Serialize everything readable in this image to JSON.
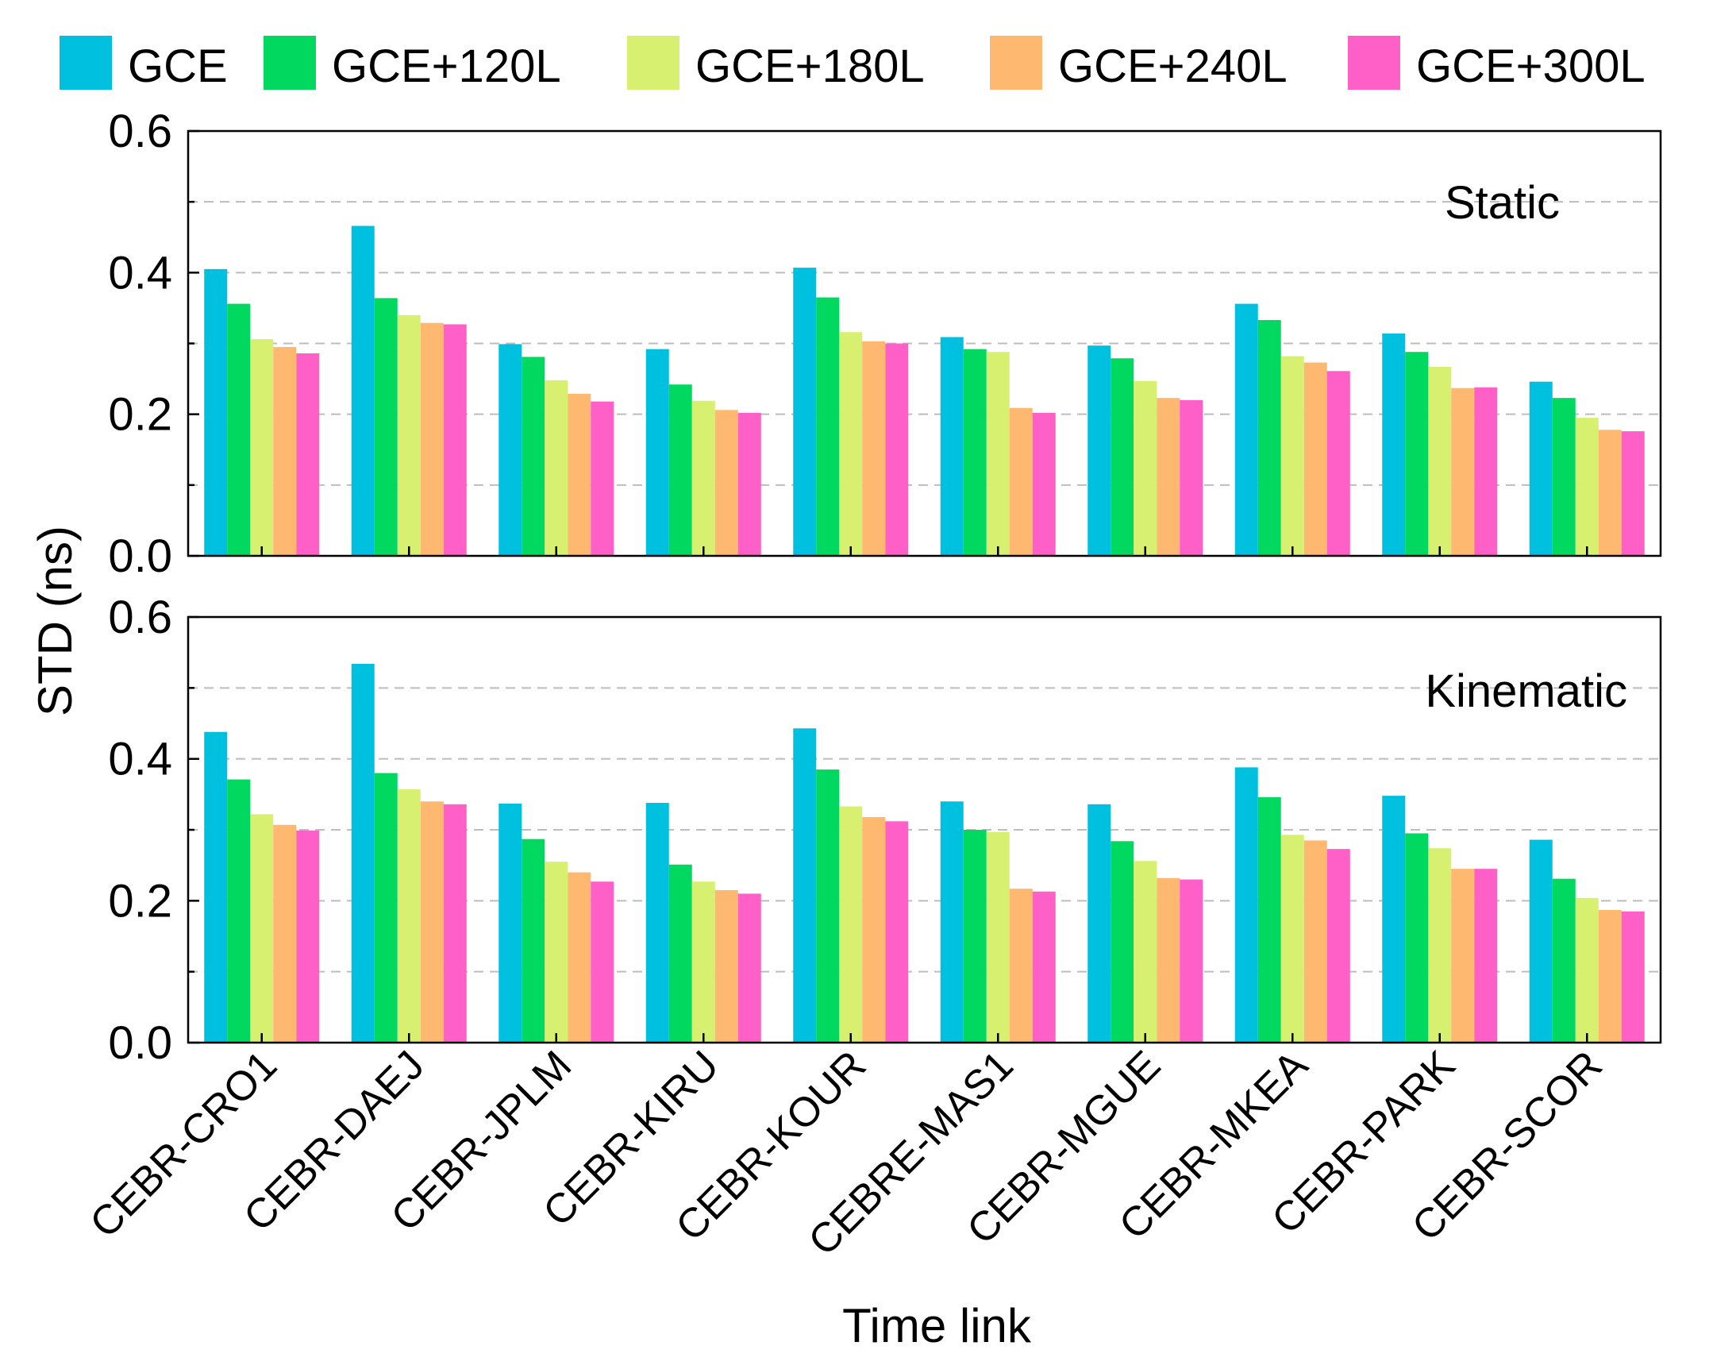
{
  "chart_data": {
    "type": "bar",
    "ylabel": "STD (ns)",
    "xlabel": "Time link",
    "ylim": [
      0,
      0.6
    ],
    "yticks": [
      "0.0",
      "0.2",
      "0.4",
      "0.6"
    ],
    "grid": true,
    "legend_position": "top",
    "categories": [
      "CEBR-CRO1",
      "CEBR-DAEJ",
      "CEBR-JPLM",
      "CEBR-KIRU",
      "CEBR-KOUR",
      "CEBRE-MAS1",
      "CEBR-MGUE",
      "CEBR-MKEA",
      "CEBR-PARK",
      "CEBR-SCOR"
    ],
    "series_meta": [
      {
        "name": "GCE",
        "color": "#00c0e0"
      },
      {
        "name": "GCE+120L",
        "color": "#00d860"
      },
      {
        "name": "GCE+180L",
        "color": "#d8f070"
      },
      {
        "name": "GCE+240L",
        "color": "#ffb870"
      },
      {
        "name": "GCE+300L",
        "color": "#ff60c8"
      }
    ],
    "panels": [
      {
        "label": "Static",
        "values": [
          [
            0.405,
            0.466,
            0.299,
            0.292,
            0.407,
            0.309,
            0.297,
            0.356,
            0.314,
            0.246
          ],
          [
            0.356,
            0.364,
            0.281,
            0.242,
            0.365,
            0.292,
            0.279,
            0.333,
            0.288,
            0.223
          ],
          [
            0.306,
            0.34,
            0.248,
            0.219,
            0.316,
            0.288,
            0.247,
            0.282,
            0.267,
            0.195
          ],
          [
            0.295,
            0.329,
            0.229,
            0.206,
            0.303,
            0.209,
            0.223,
            0.273,
            0.237,
            0.178
          ],
          [
            0.286,
            0.327,
            0.218,
            0.202,
            0.3,
            0.202,
            0.22,
            0.261,
            0.238,
            0.176
          ]
        ]
      },
      {
        "label": "Kinematic",
        "values": [
          [
            0.438,
            0.534,
            0.337,
            0.338,
            0.443,
            0.34,
            0.336,
            0.388,
            0.348,
            0.286
          ],
          [
            0.371,
            0.38,
            0.287,
            0.251,
            0.385,
            0.3,
            0.284,
            0.346,
            0.295,
            0.231
          ],
          [
            0.322,
            0.357,
            0.255,
            0.227,
            0.333,
            0.297,
            0.256,
            0.293,
            0.274,
            0.204
          ],
          [
            0.307,
            0.34,
            0.24,
            0.215,
            0.318,
            0.217,
            0.232,
            0.285,
            0.245,
            0.187
          ],
          [
            0.299,
            0.336,
            0.227,
            0.21,
            0.312,
            0.213,
            0.23,
            0.273,
            0.245,
            0.185
          ]
        ]
      }
    ]
  }
}
